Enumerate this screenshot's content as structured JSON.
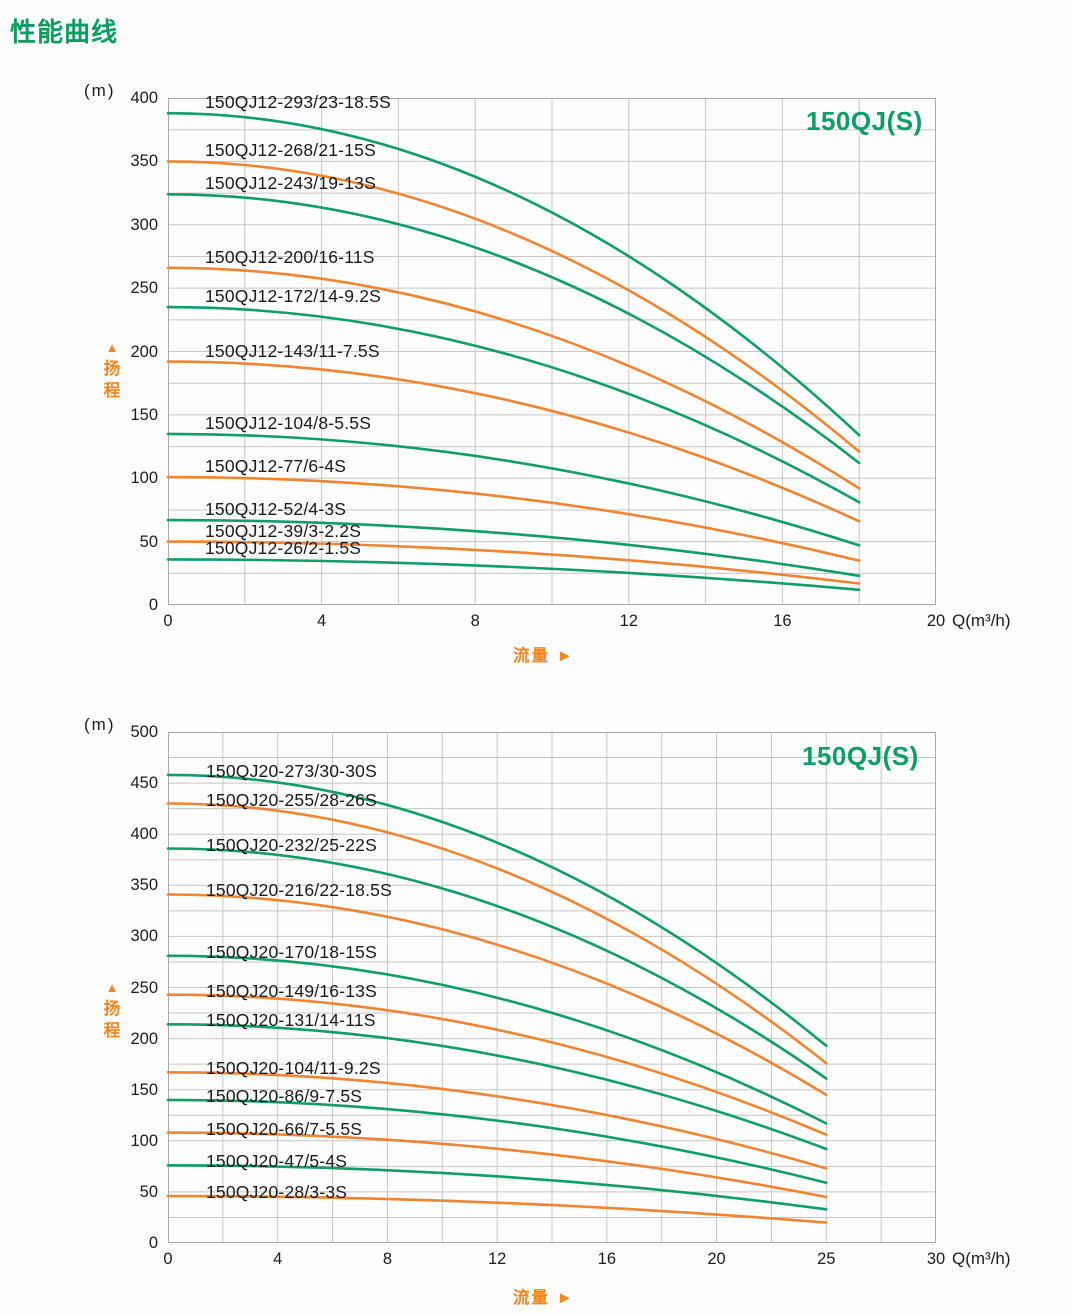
{
  "page": {
    "heading": "性能曲线"
  },
  "colors": {
    "green": "#0f9e68",
    "orange": "#f08430",
    "heading_green": "#0a9e5e",
    "title_green": "#0d9e68",
    "orange_text": "#f5861d",
    "grid": "#c6c6c6",
    "border": "#a9a9a9",
    "text": "#1c1c1c"
  },
  "chart_data": [
    {
      "type": "line",
      "title": "150QJ(S)",
      "unit_label": "(m)",
      "y_axis_arrow": "▲",
      "y_axis_label_chars": [
        "扬",
        "程"
      ],
      "flow_label": "流量",
      "flow_arrow": "►",
      "x_unit_label": "Q(m³/h)",
      "ylim": [
        0,
        400
      ],
      "y_tick_labels": [
        "400",
        "350",
        "300",
        "250",
        "200",
        "150",
        "100",
        "50",
        "0"
      ],
      "y_grid_step": 25,
      "xlim": [
        0,
        20
      ],
      "x_tick_labels": [
        "0",
        "4",
        "8",
        "12",
        "16",
        "20"
      ],
      "x_grid_step": 2,
      "curves_end_at_x": 18,
      "curve_end_frac": 0.9,
      "legend_position": "labels-on-curves",
      "grid": true,
      "series": [
        {
          "name": "150QJ12-293/23-18.5S",
          "color": "green",
          "shutoff_head_m": 388,
          "head_at_end_m": 134
        },
        {
          "name": "150QJ12-268/21-15S",
          "color": "orange",
          "shutoff_head_m": 350,
          "head_at_end_m": 121
        },
        {
          "name": "150QJ12-243/19-13S",
          "color": "green",
          "shutoff_head_m": 324,
          "head_at_end_m": 112
        },
        {
          "name": "150QJ12-200/16-11S",
          "color": "orange",
          "shutoff_head_m": 266,
          "head_at_end_m": 92
        },
        {
          "name": "150QJ12-172/14-9.2S",
          "color": "green",
          "shutoff_head_m": 235,
          "head_at_end_m": 81
        },
        {
          "name": "150QJ12-143/11-7.5S",
          "color": "orange",
          "shutoff_head_m": 192,
          "head_at_end_m": 66
        },
        {
          "name": "150QJ12-104/8-5.5S",
          "color": "green",
          "shutoff_head_m": 135,
          "head_at_end_m": 47
        },
        {
          "name": "150QJ12-77/6-4S",
          "color": "orange",
          "shutoff_head_m": 101,
          "head_at_end_m": 35
        },
        {
          "name": "150QJ12-52/4-3S",
          "color": "green",
          "shutoff_head_m": 67,
          "head_at_end_m": 23
        },
        {
          "name": "150QJ12-39/3-2.2S",
          "color": "orange",
          "shutoff_head_m": 50,
          "head_at_end_m": 17
        },
        {
          "name": "150QJ12-26/2-1.5S",
          "color": "green",
          "shutoff_head_m": 36,
          "head_at_end_m": 12
        }
      ]
    },
    {
      "type": "line",
      "title": "150QJ(S)",
      "unit_label": "(m)",
      "y_axis_arrow": "▲",
      "y_axis_label_chars": [
        "扬",
        "程"
      ],
      "flow_label": "流量",
      "flow_arrow": "►",
      "x_unit_label": "Q(m³/h)",
      "ylim": [
        0,
        500
      ],
      "y_tick_labels": [
        "500",
        "450",
        "400",
        "350",
        "300",
        "250",
        "200",
        "150",
        "100",
        "50",
        "0"
      ],
      "y_grid_step": 25,
      "xlim": [
        0,
        30
      ],
      "x_tick_labels": [
        "0",
        "4",
        "8",
        "12",
        "16",
        "20",
        "25",
        "30"
      ],
      "x_grid_step": "half-interval",
      "curves_end_at_x": 25,
      "curve_end_frac": 0.857,
      "legend_position": "labels-on-curves",
      "grid": true,
      "series": [
        {
          "name": "150QJ20-273/30-30S",
          "color": "green",
          "shutoff_head_m": 458,
          "head_at_end_m": 193
        },
        {
          "name": "150QJ20-255/28-26S",
          "color": "orange",
          "shutoff_head_m": 430,
          "head_at_end_m": 176
        },
        {
          "name": "150QJ20-232/25-22S",
          "color": "green",
          "shutoff_head_m": 386,
          "head_at_end_m": 161
        },
        {
          "name": "150QJ20-216/22-18.5S",
          "color": "orange",
          "shutoff_head_m": 341,
          "head_at_end_m": 145
        },
        {
          "name": "150QJ20-170/18-15S",
          "color": "green",
          "shutoff_head_m": 281,
          "head_at_end_m": 117
        },
        {
          "name": "150QJ20-149/16-13S",
          "color": "orange",
          "shutoff_head_m": 243,
          "head_at_end_m": 106
        },
        {
          "name": "150QJ20-131/14-11S",
          "color": "green",
          "shutoff_head_m": 214,
          "head_at_end_m": 92
        },
        {
          "name": "150QJ20-104/11-9.2S",
          "color": "orange",
          "shutoff_head_m": 167,
          "head_at_end_m": 73
        },
        {
          "name": "150QJ20-86/9-7.5S",
          "color": "green",
          "shutoff_head_m": 140,
          "head_at_end_m": 59
        },
        {
          "name": "150QJ20-66/7-5.5S",
          "color": "orange",
          "shutoff_head_m": 108,
          "head_at_end_m": 45
        },
        {
          "name": "150QJ20-47/5-4S",
          "color": "green",
          "shutoff_head_m": 76,
          "head_at_end_m": 33
        },
        {
          "name": "150QJ20-28/3-3S",
          "color": "orange",
          "shutoff_head_m": 46,
          "head_at_end_m": 20
        }
      ]
    }
  ]
}
